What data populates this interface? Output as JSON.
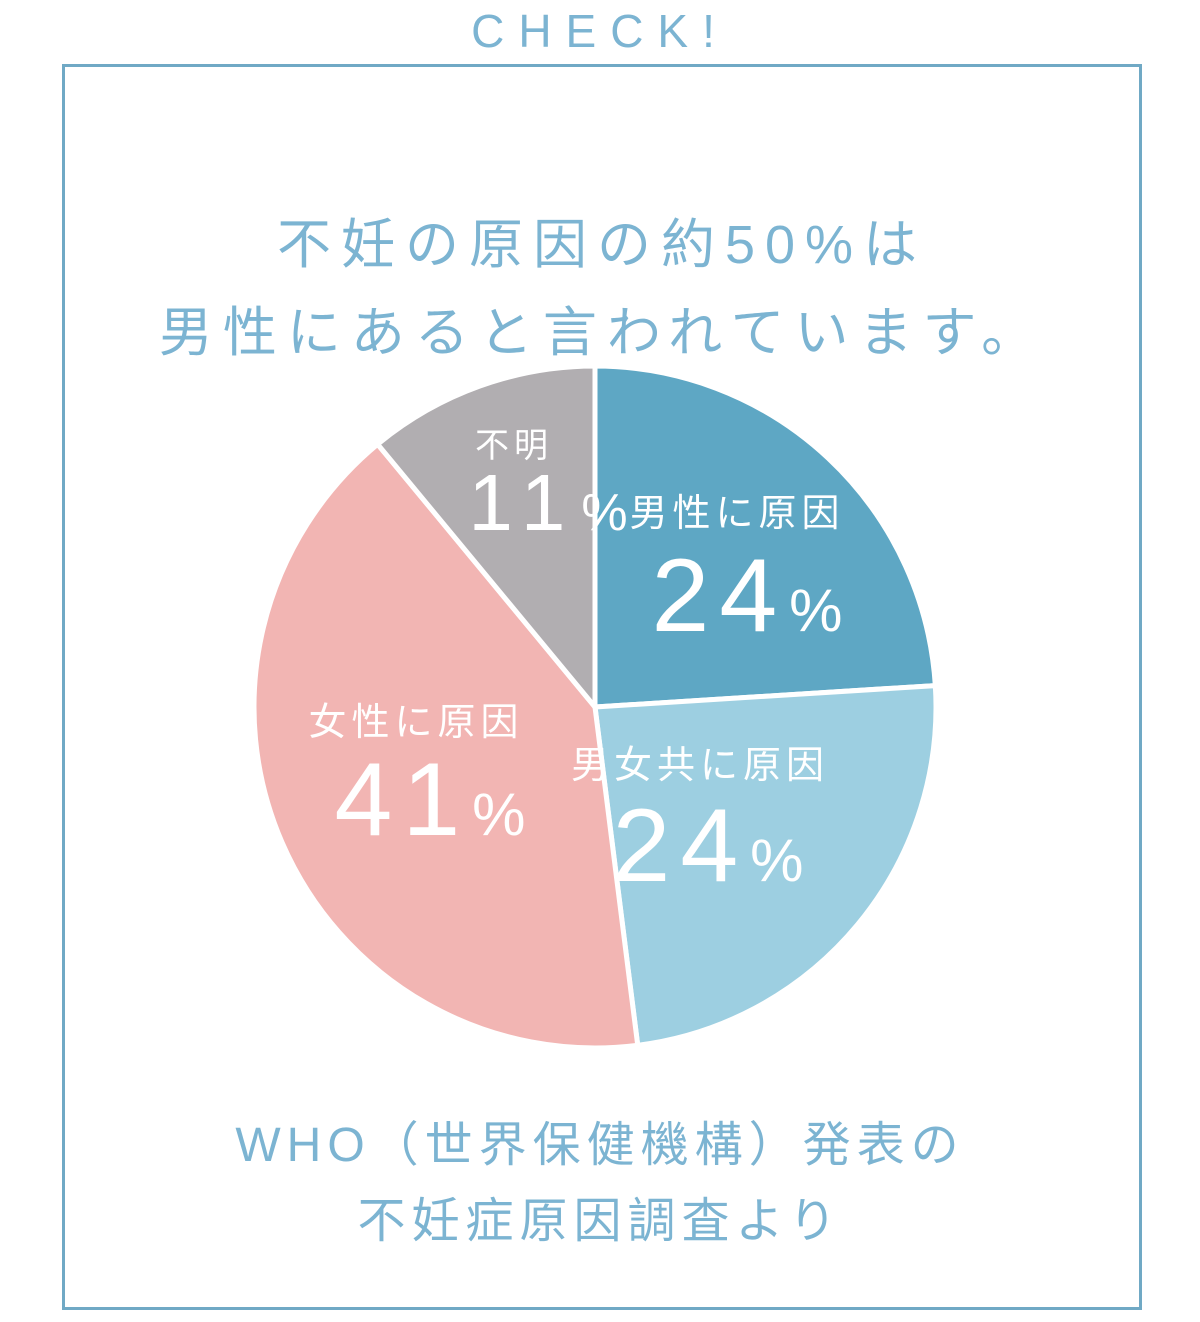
{
  "header": {
    "check_label": "CHECK!"
  },
  "panel": {
    "title_line1": "不妊の原因の約50%は",
    "title_line2": "男性にあると言われています。",
    "source_line1": "WHO（世界保健機構）発表の",
    "source_line2": "不妊症原因調査より"
  },
  "colors": {
    "accent_text": "#7cb4d2",
    "panel_border": "#70a9c5",
    "slice_label_text": "#ffffff",
    "slice_divider": "#ffffff"
  },
  "chart_data": {
    "type": "pie",
    "categories": [
      "男性に原因",
      "男女共に原因",
      "女性に原因",
      "不明"
    ],
    "values": [
      24,
      24,
      41,
      11
    ],
    "start_angle_deg": -90,
    "direction": "clockwise",
    "source": "WHO（世界保健機構）発表の不妊症原因調査より",
    "segments": [
      {
        "id": "male",
        "label": "男性に原因",
        "value": 24,
        "unit": "%",
        "color": "#5ea7c4"
      },
      {
        "id": "both",
        "label": "男女共に原因",
        "value": 24,
        "unit": "%",
        "color": "#9dcfe1"
      },
      {
        "id": "female",
        "label": "女性に原因",
        "value": 41,
        "unit": "%",
        "color": "#f2b5b3"
      },
      {
        "id": "unknown",
        "label": "不明",
        "value": 11,
        "unit": "%",
        "color": "#b1aeb1"
      }
    ]
  }
}
